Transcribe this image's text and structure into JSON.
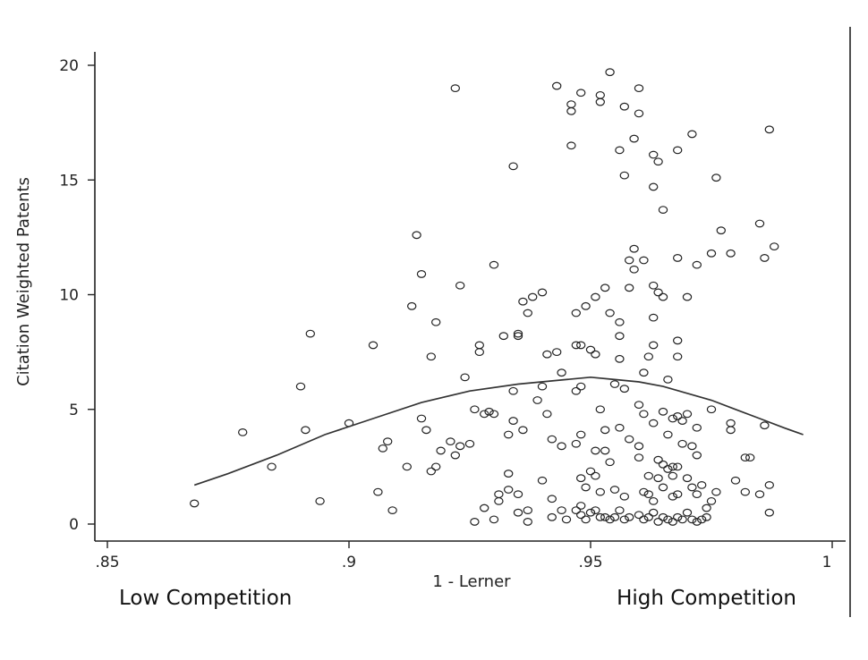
{
  "chart_data": {
    "type": "scatter",
    "title": "",
    "xlabel": "1 - Lerner",
    "ylabel": "Citation Weighted Patents",
    "xlim": [
      0.85,
      1.0
    ],
    "ylim": [
      0,
      20
    ],
    "x_ticks": [
      {
        "value": 0.85,
        "label": ".85"
      },
      {
        "value": 0.9,
        "label": ".9"
      },
      {
        "value": 0.95,
        "label": ".95"
      },
      {
        "value": 1.0,
        "label": "1"
      }
    ],
    "y_ticks": [
      {
        "value": 0,
        "label": "0"
      },
      {
        "value": 5,
        "label": "5"
      },
      {
        "value": 10,
        "label": "10"
      },
      {
        "value": 15,
        "label": "15"
      },
      {
        "value": 20,
        "label": "20"
      }
    ],
    "annotations": {
      "left": "Low Competition",
      "right": "High Competition"
    },
    "grid": false,
    "points": [
      [
        0.868,
        0.9
      ],
      [
        0.878,
        4.0
      ],
      [
        0.884,
        2.5
      ],
      [
        0.89,
        6.0
      ],
      [
        0.891,
        4.1
      ],
      [
        0.892,
        8.3
      ],
      [
        0.894,
        1.0
      ],
      [
        0.9,
        4.4
      ],
      [
        0.905,
        7.8
      ],
      [
        0.906,
        1.4
      ],
      [
        0.907,
        3.3
      ],
      [
        0.908,
        3.6
      ],
      [
        0.909,
        0.6
      ],
      [
        0.912,
        2.5
      ],
      [
        0.913,
        9.5
      ],
      [
        0.914,
        12.6
      ],
      [
        0.915,
        10.9
      ],
      [
        0.915,
        4.6
      ],
      [
        0.916,
        4.1
      ],
      [
        0.917,
        2.3
      ],
      [
        0.917,
        7.3
      ],
      [
        0.918,
        8.8
      ],
      [
        0.918,
        2.5
      ],
      [
        0.919,
        3.2
      ],
      [
        0.921,
        3.6
      ],
      [
        0.922,
        19.0
      ],
      [
        0.922,
        3.0
      ],
      [
        0.923,
        10.4
      ],
      [
        0.923,
        3.4
      ],
      [
        0.924,
        6.4
      ],
      [
        0.925,
        3.5
      ],
      [
        0.926,
        5.0
      ],
      [
        0.926,
        0.1
      ],
      [
        0.927,
        7.8
      ],
      [
        0.927,
        7.5
      ],
      [
        0.928,
        4.8
      ],
      [
        0.928,
        0.7
      ],
      [
        0.929,
        4.9
      ],
      [
        0.93,
        11.3
      ],
      [
        0.93,
        4.8
      ],
      [
        0.93,
        0.2
      ],
      [
        0.931,
        1.3
      ],
      [
        0.931,
        1.0
      ],
      [
        0.932,
        8.2
      ],
      [
        0.933,
        3.9
      ],
      [
        0.933,
        2.2
      ],
      [
        0.933,
        1.5
      ],
      [
        0.934,
        15.6
      ],
      [
        0.934,
        5.8
      ],
      [
        0.934,
        4.5
      ],
      [
        0.935,
        8.3
      ],
      [
        0.935,
        8.2
      ],
      [
        0.935,
        1.3
      ],
      [
        0.935,
        0.5
      ],
      [
        0.936,
        9.7
      ],
      [
        0.936,
        4.1
      ],
      [
        0.937,
        9.2
      ],
      [
        0.937,
        0.6
      ],
      [
        0.937,
        0.1
      ],
      [
        0.938,
        9.9
      ],
      [
        0.939,
        5.4
      ],
      [
        0.94,
        10.1
      ],
      [
        0.94,
        6.0
      ],
      [
        0.94,
        1.9
      ],
      [
        0.941,
        7.4
      ],
      [
        0.941,
        4.8
      ],
      [
        0.942,
        3.7
      ],
      [
        0.942,
        1.1
      ],
      [
        0.942,
        0.3
      ],
      [
        0.943,
        19.1
      ],
      [
        0.943,
        7.5
      ],
      [
        0.944,
        6.6
      ],
      [
        0.944,
        3.4
      ],
      [
        0.944,
        0.6
      ],
      [
        0.945,
        0.2
      ],
      [
        0.946,
        18.0
      ],
      [
        0.946,
        18.3
      ],
      [
        0.946,
        16.5
      ],
      [
        0.947,
        9.2
      ],
      [
        0.947,
        7.8
      ],
      [
        0.947,
        5.8
      ],
      [
        0.947,
        3.5
      ],
      [
        0.947,
        0.6
      ],
      [
        0.948,
        18.8
      ],
      [
        0.948,
        7.8
      ],
      [
        0.948,
        6.0
      ],
      [
        0.948,
        3.9
      ],
      [
        0.948,
        2.0
      ],
      [
        0.948,
        0.8
      ],
      [
        0.948,
        0.4
      ],
      [
        0.949,
        9.5
      ],
      [
        0.949,
        1.6
      ],
      [
        0.949,
        0.2
      ],
      [
        0.95,
        7.6
      ],
      [
        0.95,
        2.3
      ],
      [
        0.95,
        0.5
      ],
      [
        0.951,
        9.9
      ],
      [
        0.951,
        7.4
      ],
      [
        0.951,
        3.2
      ],
      [
        0.951,
        2.1
      ],
      [
        0.951,
        0.6
      ],
      [
        0.952,
        18.7
      ],
      [
        0.952,
        18.4
      ],
      [
        0.952,
        5.0
      ],
      [
        0.952,
        1.4
      ],
      [
        0.952,
        0.3
      ],
      [
        0.953,
        10.3
      ],
      [
        0.953,
        4.1
      ],
      [
        0.953,
        3.2
      ],
      [
        0.953,
        0.3
      ],
      [
        0.954,
        19.7
      ],
      [
        0.954,
        9.2
      ],
      [
        0.954,
        2.7
      ],
      [
        0.954,
        0.2
      ],
      [
        0.955,
        6.1
      ],
      [
        0.955,
        1.5
      ],
      [
        0.955,
        0.3
      ],
      [
        0.956,
        16.3
      ],
      [
        0.956,
        8.8
      ],
      [
        0.956,
        8.2
      ],
      [
        0.956,
        7.2
      ],
      [
        0.956,
        4.2
      ],
      [
        0.956,
        0.6
      ],
      [
        0.957,
        15.2
      ],
      [
        0.957,
        18.2
      ],
      [
        0.957,
        5.9
      ],
      [
        0.957,
        1.2
      ],
      [
        0.957,
        0.2
      ],
      [
        0.958,
        11.5
      ],
      [
        0.958,
        10.3
      ],
      [
        0.958,
        3.7
      ],
      [
        0.958,
        0.3
      ],
      [
        0.959,
        16.8
      ],
      [
        0.959,
        12.0
      ],
      [
        0.959,
        11.1
      ],
      [
        0.96,
        17.9
      ],
      [
        0.96,
        19.0
      ],
      [
        0.96,
        5.2
      ],
      [
        0.96,
        3.4
      ],
      [
        0.96,
        2.9
      ],
      [
        0.96,
        0.4
      ],
      [
        0.961,
        11.5
      ],
      [
        0.961,
        6.6
      ],
      [
        0.961,
        4.8
      ],
      [
        0.961,
        1.4
      ],
      [
        0.961,
        0.2
      ],
      [
        0.962,
        7.3
      ],
      [
        0.962,
        2.1
      ],
      [
        0.962,
        1.3
      ],
      [
        0.962,
        0.3
      ],
      [
        0.963,
        16.1
      ],
      [
        0.963,
        14.7
      ],
      [
        0.963,
        10.4
      ],
      [
        0.963,
        9.0
      ],
      [
        0.963,
        7.8
      ],
      [
        0.963,
        4.4
      ],
      [
        0.963,
        1.0
      ],
      [
        0.963,
        0.5
      ],
      [
        0.964,
        15.8
      ],
      [
        0.964,
        10.1
      ],
      [
        0.964,
        2.8
      ],
      [
        0.964,
        2.0
      ],
      [
        0.964,
        0.1
      ],
      [
        0.965,
        13.7
      ],
      [
        0.965,
        9.9
      ],
      [
        0.965,
        4.9
      ],
      [
        0.965,
        2.6
      ],
      [
        0.965,
        1.6
      ],
      [
        0.965,
        0.3
      ],
      [
        0.966,
        6.3
      ],
      [
        0.966,
        3.9
      ],
      [
        0.966,
        2.4
      ],
      [
        0.966,
        0.2
      ],
      [
        0.967,
        4.6
      ],
      [
        0.967,
        2.5
      ],
      [
        0.967,
        2.1
      ],
      [
        0.967,
        1.2
      ],
      [
        0.967,
        0.1
      ],
      [
        0.968,
        16.3
      ],
      [
        0.968,
        11.6
      ],
      [
        0.968,
        8.0
      ],
      [
        0.968,
        7.3
      ],
      [
        0.968,
        4.7
      ],
      [
        0.968,
        2.5
      ],
      [
        0.968,
        1.3
      ],
      [
        0.968,
        0.3
      ],
      [
        0.969,
        4.5
      ],
      [
        0.969,
        3.5
      ],
      [
        0.969,
        0.2
      ],
      [
        0.97,
        9.9
      ],
      [
        0.97,
        4.8
      ],
      [
        0.97,
        2.0
      ],
      [
        0.97,
        0.5
      ],
      [
        0.971,
        17.0
      ],
      [
        0.971,
        3.4
      ],
      [
        0.971,
        1.6
      ],
      [
        0.971,
        0.2
      ],
      [
        0.972,
        11.3
      ],
      [
        0.972,
        4.2
      ],
      [
        0.972,
        3.0
      ],
      [
        0.972,
        1.3
      ],
      [
        0.972,
        0.1
      ],
      [
        0.973,
        1.7
      ],
      [
        0.973,
        0.2
      ],
      [
        0.974,
        0.7
      ],
      [
        0.974,
        0.3
      ],
      [
        0.975,
        11.8
      ],
      [
        0.975,
        5.0
      ],
      [
        0.975,
        1.0
      ],
      [
        0.976,
        15.1
      ],
      [
        0.976,
        1.4
      ],
      [
        0.977,
        12.8
      ],
      [
        0.979,
        11.8
      ],
      [
        0.979,
        4.4
      ],
      [
        0.979,
        4.1
      ],
      [
        0.98,
        1.9
      ],
      [
        0.982,
        2.9
      ],
      [
        0.982,
        1.4
      ],
      [
        0.983,
        2.9
      ],
      [
        0.985,
        13.1
      ],
      [
        0.985,
        1.3
      ],
      [
        0.986,
        11.6
      ],
      [
        0.986,
        4.3
      ],
      [
        0.987,
        17.2
      ],
      [
        0.987,
        1.7
      ],
      [
        0.987,
        0.5
      ],
      [
        0.988,
        12.1
      ]
    ],
    "fit_line": {
      "x": [
        0.868,
        0.875,
        0.885,
        0.895,
        0.905,
        0.915,
        0.925,
        0.935,
        0.945,
        0.95,
        0.955,
        0.96,
        0.965,
        0.97,
        0.975,
        0.98,
        0.985,
        0.99,
        0.994
      ],
      "y": [
        1.7,
        2.2,
        3.0,
        3.9,
        4.6,
        5.3,
        5.8,
        6.1,
        6.3,
        6.4,
        6.3,
        6.2,
        6.0,
        5.7,
        5.4,
        5.0,
        4.6,
        4.2,
        3.9
      ]
    }
  }
}
